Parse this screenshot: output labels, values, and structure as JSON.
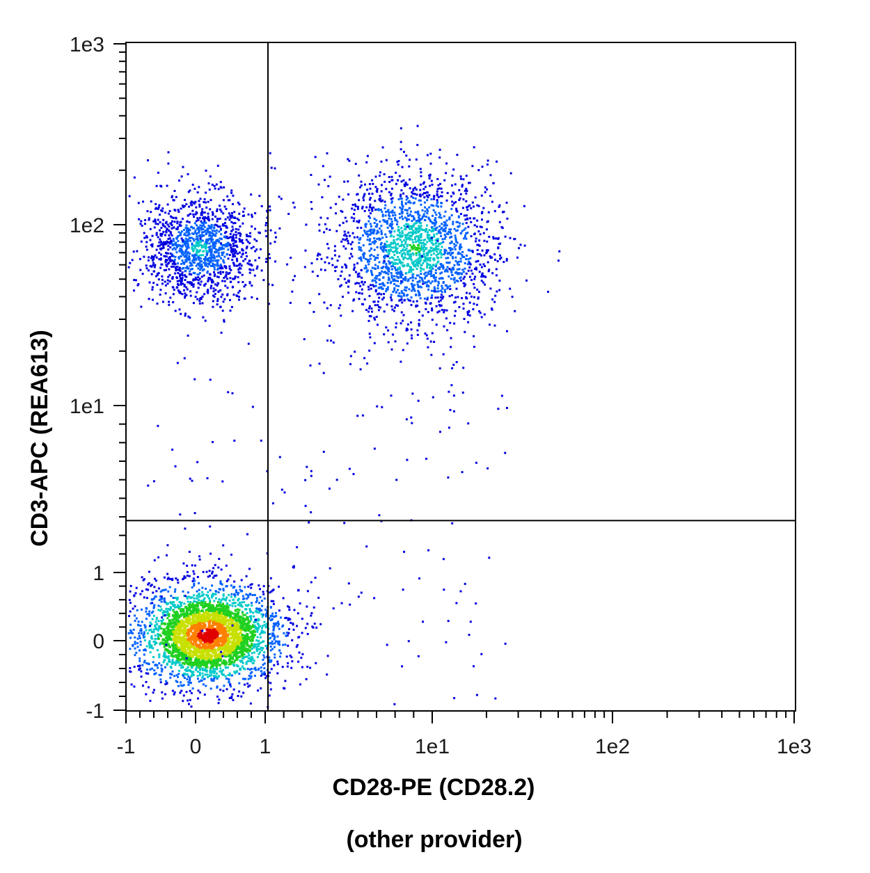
{
  "chart_data": {
    "type": "scatter",
    "subtype": "flow-cytometry-density-dot-plot",
    "xlabel": "CD28-PE (CD28.2)",
    "xlabel_line2": "(other provider)",
    "ylabel": "CD3-APC (REA613)",
    "x_scale": "biexponential",
    "y_scale": "biexponential",
    "xlim": [
      -1,
      1000
    ],
    "ylim": [
      -1,
      1000
    ],
    "x_ticks": [
      {
        "value": -1,
        "label": "-1"
      },
      {
        "value": 0,
        "label": "0"
      },
      {
        "value": 1,
        "label": "1"
      },
      {
        "value": 10,
        "label": "1e1"
      },
      {
        "value": 100,
        "label": "1e2"
      },
      {
        "value": 1000,
        "label": "1e3"
      }
    ],
    "y_ticks": [
      {
        "value": -1,
        "label": "-1"
      },
      {
        "value": 0,
        "label": "0"
      },
      {
        "value": 1,
        "label": "1"
      },
      {
        "value": 10,
        "label": "1e1"
      },
      {
        "value": 100,
        "label": "1e2"
      },
      {
        "value": 1000,
        "label": "1e3"
      }
    ],
    "gates": {
      "x": 1.15,
      "y": 3.8
    },
    "populations": [
      {
        "x_center": 0.15,
        "y_center": 0.1,
        "relative_density": 1.0
      },
      {
        "x_center": 0.05,
        "y_center": 75,
        "relative_density": 0.25
      },
      {
        "x_center": 9,
        "y_center": 75,
        "relative_density": 0.35
      }
    ],
    "density_colors": [
      "#0000e0",
      "#0060ff",
      "#00c8c8",
      "#20d020",
      "#c8e000",
      "#ff8000",
      "#e00000"
    ],
    "grid": false
  }
}
